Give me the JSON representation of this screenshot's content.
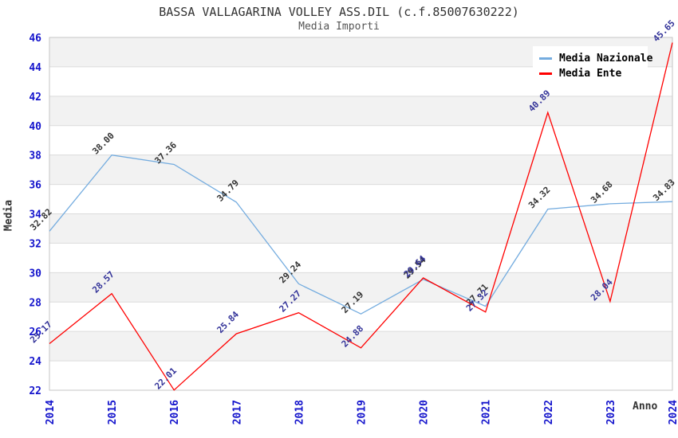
{
  "header": {
    "title": "BASSA VALLAGARINA VOLLEY ASS.DIL (c.f.85007630222)",
    "subtitle": "Media Importi"
  },
  "axes": {
    "y_title": "Media",
    "x_title": "Anno",
    "y_ticks": [
      46,
      44,
      42,
      40,
      38,
      36,
      34,
      32,
      30,
      28,
      26,
      24,
      22
    ],
    "tick_label_color": "#1414CC"
  },
  "plot_style": {
    "band_fill": "#F2F2F2",
    "grid_color": "#DBDBDB",
    "border_color": "#C6C6C6",
    "background": "#FFFFFF"
  },
  "chart_data": {
    "type": "line",
    "title": "BASSA VALLAGARINA VOLLEY ASS.DIL (c.f.85007630222)",
    "subtitle": "Media Importi",
    "xlabel": "Anno",
    "ylabel": "Media",
    "ylim": [
      22,
      46
    ],
    "grid": true,
    "legend_position": "top-right",
    "x": [
      "2014",
      "2015",
      "2016",
      "2017",
      "2018",
      "2019",
      "2020",
      "2021",
      "2022",
      "2023",
      "2024"
    ],
    "series": [
      {
        "name": "Media Nazionale",
        "color": "#74ACDF",
        "label_color": "#333333",
        "values": [
          32.82,
          38.0,
          37.36,
          34.79,
          29.24,
          27.19,
          29.54,
          27.71,
          34.32,
          34.68,
          34.83
        ]
      },
      {
        "name": "Media Ente",
        "color": "#FF0000",
        "label_color": "#333399",
        "values": [
          25.17,
          28.57,
          22.01,
          25.84,
          27.27,
          24.88,
          29.64,
          27.32,
          40.89,
          28.04,
          45.65
        ]
      }
    ]
  }
}
